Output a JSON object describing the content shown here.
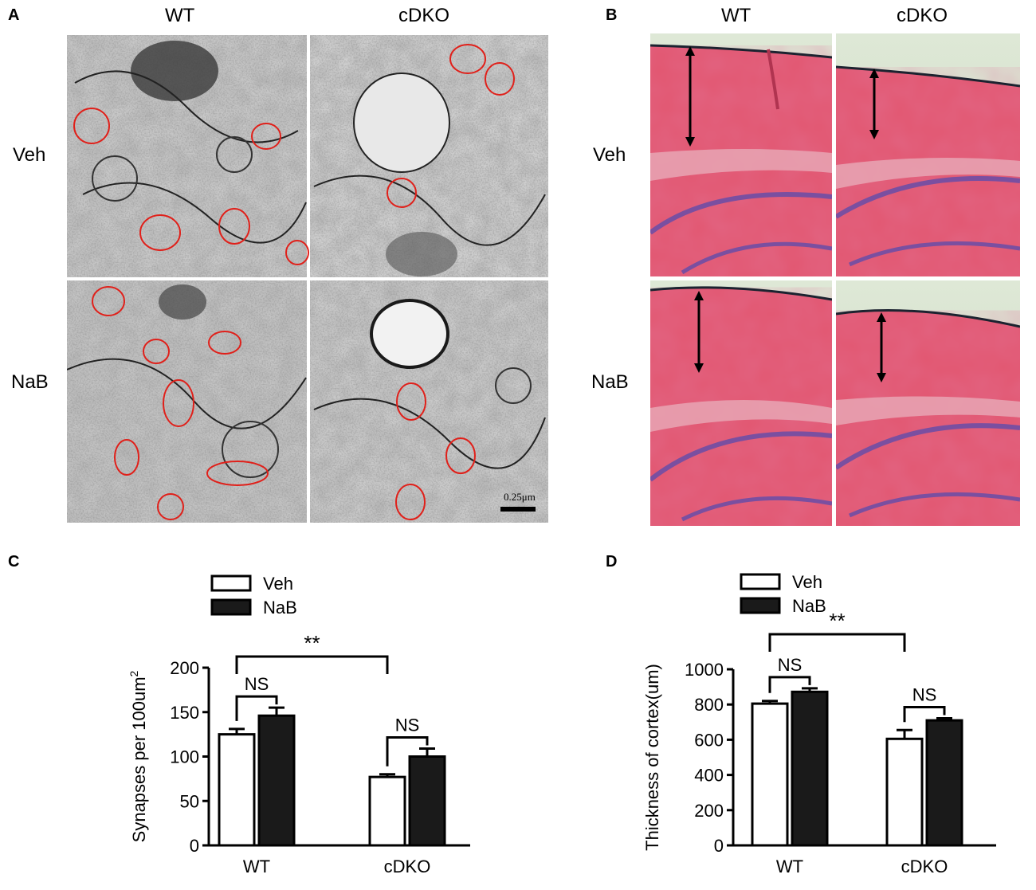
{
  "figure": {
    "panel_a": {
      "letter": "A",
      "columns": [
        "WT",
        "cDKO"
      ],
      "rows": [
        "Veh",
        "NaB"
      ],
      "scale_bar_label": "0.25μm"
    },
    "panel_b": {
      "letter": "B",
      "columns": [
        "WT",
        "cDKO"
      ],
      "rows": [
        "Veh",
        "NaB"
      ]
    },
    "panel_c": {
      "letter": "C"
    },
    "panel_d": {
      "letter": "D"
    }
  },
  "colors": {
    "bar_veh": "#ffffff",
    "bar_nab": "#1a1a1a",
    "synapse_circle": "#e0201a",
    "he_stain": "#e0566e",
    "hippocampus": "#7a4fa0"
  },
  "chart_data": [
    {
      "type": "bar",
      "panel": "C",
      "categories": [
        "WT",
        "cDKO"
      ],
      "series": [
        {
          "name": "Veh",
          "values": [
            125,
            77
          ],
          "errors": [
            6,
            3
          ]
        },
        {
          "name": "NaB",
          "values": [
            146,
            100
          ],
          "errors": [
            9,
            9
          ]
        }
      ],
      "ylabel": "Synapses per 100um",
      "ylabel_sup": "2",
      "ylim": [
        0,
        200
      ],
      "yticks": [
        0,
        50,
        100,
        150,
        200
      ],
      "legend": "top",
      "grid": false,
      "annotations": [
        {
          "text": "NS",
          "between": [
            "WT Veh",
            "WT NaB"
          ]
        },
        {
          "text": "NS",
          "between": [
            "cDKO Veh",
            "cDKO NaB"
          ]
        },
        {
          "text": "**",
          "between": [
            "WT Veh",
            "cDKO Veh"
          ]
        }
      ]
    },
    {
      "type": "bar",
      "panel": "D",
      "categories": [
        "WT",
        "cDKO"
      ],
      "series": [
        {
          "name": "Veh",
          "values": [
            805,
            605
          ],
          "errors": [
            15,
            50
          ]
        },
        {
          "name": "NaB",
          "values": [
            872,
            710
          ],
          "errors": [
            20,
            12
          ]
        }
      ],
      "ylabel": "Thickness of cortex(um)",
      "ylim": [
        0,
        1000
      ],
      "yticks": [
        0,
        200,
        400,
        600,
        800,
        1000
      ],
      "legend": "top",
      "grid": false,
      "annotations": [
        {
          "text": "NS",
          "between": [
            "WT Veh",
            "WT NaB"
          ]
        },
        {
          "text": "NS",
          "between": [
            "cDKO Veh",
            "cDKO NaB"
          ]
        },
        {
          "text": "**",
          "between": [
            "WT Veh",
            "cDKO Veh"
          ]
        }
      ]
    }
  ]
}
